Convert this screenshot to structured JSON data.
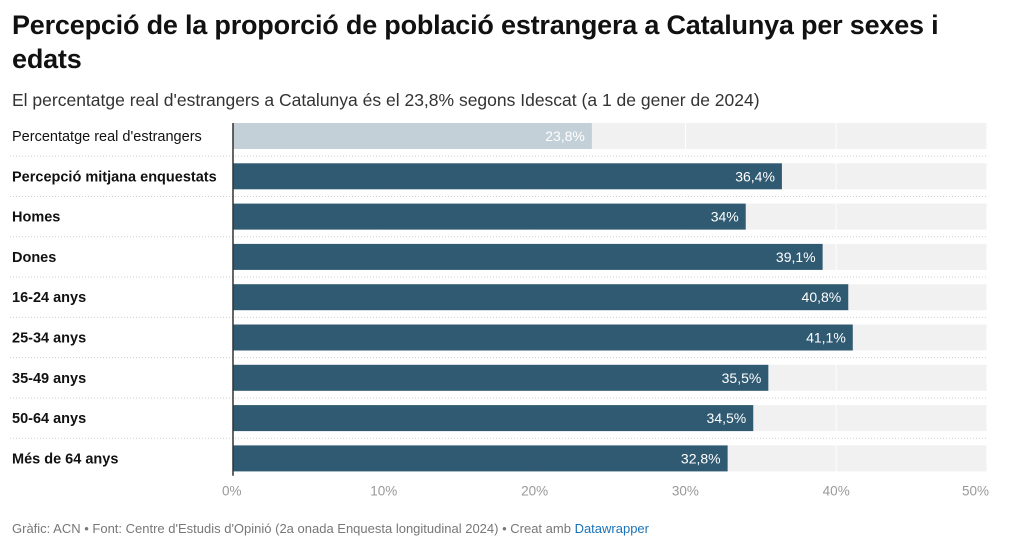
{
  "title": "Percepció de la proporció de població estrangera a Catalunya per sexes i edats",
  "subtitle": "El percentatge real d'estrangers a Catalunya és el 23,8% segons Idescat (a 1 de gener de 2024)",
  "footer": {
    "credit": "Gràfic: ACN • Font: Centre d'Estudis d'Opinió (2a onada Enquesta longitudinal 2024) • Creat amb",
    "link": "Datawrapper"
  },
  "colors": {
    "highlight_bar": "#c3d0d8",
    "bar": "#2f5a72",
    "track": "#f1f1f1"
  },
  "chart_data": {
    "type": "bar",
    "orientation": "horizontal",
    "categories": [
      "Percentatge real d'estrangers",
      "Percepció mitjana enquestats",
      "Homes",
      "Dones",
      "16-24 anys",
      "25-34 anys",
      "35-49 anys",
      "50-64 anys",
      "Més de 64 anys"
    ],
    "values": [
      23.8,
      36.4,
      34,
      39.1,
      40.8,
      41.1,
      35.5,
      34.5,
      32.8
    ],
    "value_labels": [
      "23,8%",
      "36,4%",
      "34%",
      "39,1%",
      "40,8%",
      "41,1%",
      "35,5%",
      "34,5%",
      "32,8%"
    ],
    "bold_categories": [
      false,
      true,
      true,
      true,
      true,
      true,
      true,
      true,
      true
    ],
    "highlight": [
      true,
      false,
      false,
      false,
      false,
      false,
      false,
      false,
      false
    ],
    "xlim": [
      0,
      50
    ],
    "xticks": [
      0,
      10,
      20,
      30,
      40,
      50
    ],
    "xtick_labels": [
      "0%",
      "10%",
      "20%",
      "30%",
      "40%",
      "50%"
    ],
    "grid": true
  }
}
